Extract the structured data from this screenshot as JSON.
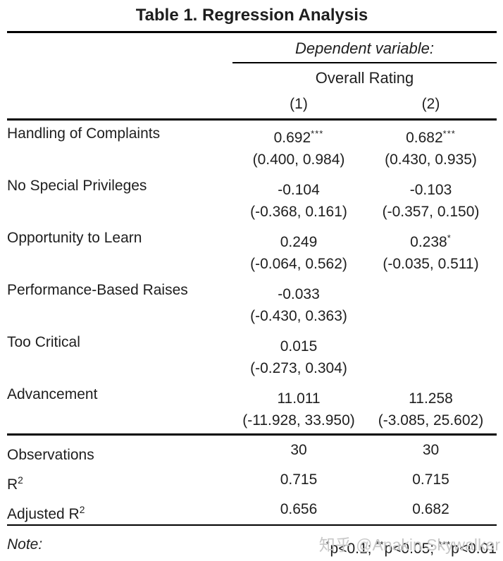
{
  "title": "Table 1. Regression Analysis",
  "header": {
    "dependent_variable_label": "Dependent variable:",
    "dependent_variable_name": "Overall Rating",
    "column_labels": [
      "(1)",
      "(2)"
    ]
  },
  "table": {
    "rows": [
      {
        "label": "Handling of Complaints",
        "cols": [
          {
            "coef": "0.692",
            "stars": "***",
            "ci": "(0.400, 0.984)"
          },
          {
            "coef": "0.682",
            "stars": "***",
            "ci": "(0.430, 0.935)"
          }
        ]
      },
      {
        "label": "No Special Privileges",
        "cols": [
          {
            "coef": "-0.104",
            "stars": "",
            "ci": "(-0.368, 0.161)"
          },
          {
            "coef": "-0.103",
            "stars": "",
            "ci": "(-0.357, 0.150)"
          }
        ]
      },
      {
        "label": "Opportunity to Learn",
        "cols": [
          {
            "coef": "0.249",
            "stars": "",
            "ci": "(-0.064, 0.562)"
          },
          {
            "coef": "0.238",
            "stars": "*",
            "ci": "(-0.035, 0.511)"
          }
        ]
      },
      {
        "label": "Performance-Based Raises",
        "cols": [
          {
            "coef": "-0.033",
            "stars": "",
            "ci": "(-0.430, 0.363)"
          },
          {
            "coef": "",
            "stars": "",
            "ci": ""
          }
        ]
      },
      {
        "label": "Too Critical",
        "cols": [
          {
            "coef": "0.015",
            "stars": "",
            "ci": "(-0.273, 0.304)"
          },
          {
            "coef": "",
            "stars": "",
            "ci": ""
          }
        ]
      },
      {
        "label": "Advancement",
        "cols": [
          {
            "coef": "11.011",
            "stars": "",
            "ci": "(-11.928, 33.950)"
          },
          {
            "coef": "11.258",
            "stars": "",
            "ci": "(-3.085, 25.602)"
          }
        ]
      }
    ],
    "stats": [
      {
        "label": "Observations",
        "label_sup": "",
        "values": [
          "30",
          "30"
        ]
      },
      {
        "label": "R",
        "label_sup": "2",
        "values": [
          "0.715",
          "0.715"
        ]
      },
      {
        "label": "Adjusted R",
        "label_sup": "2",
        "values": [
          "0.656",
          "0.682"
        ]
      }
    ]
  },
  "note": {
    "label": "Note:",
    "parts": [
      {
        "sup": "*",
        "text": "p<0.1; "
      },
      {
        "sup": "**",
        "text": "p<0.05; "
      },
      {
        "sup": "***",
        "text": "p<0.01"
      }
    ]
  },
  "watermark": "知乎 @Anakin Skywalker",
  "colors": {
    "background": "#ffffff",
    "text": "#1e1e1e",
    "rule": "#000000",
    "watermark": "#c7c7c7"
  }
}
